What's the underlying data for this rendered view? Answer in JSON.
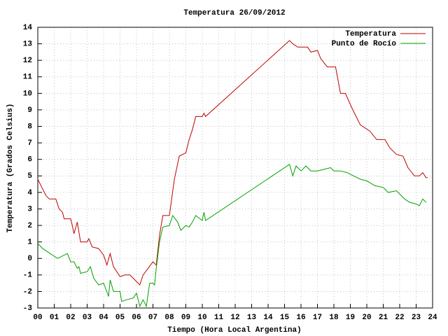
{
  "chart_data": {
    "type": "line",
    "title": "Temperatura 26/09/2012",
    "x_label": "Tiempo (Hora Local Argentina)",
    "y_label": "Temperatura (Grados Celsius)",
    "xlim": [
      0,
      24
    ],
    "ylim": [
      -3,
      14
    ],
    "xticks": [
      {
        "value": 0,
        "label": "00"
      },
      {
        "value": 1,
        "label": "01"
      },
      {
        "value": 2,
        "label": "02"
      },
      {
        "value": 3,
        "label": "03"
      },
      {
        "value": 4,
        "label": "04"
      },
      {
        "value": 5,
        "label": "05"
      },
      {
        "value": 6,
        "label": "06"
      },
      {
        "value": 7,
        "label": "07"
      },
      {
        "value": 8,
        "label": "08"
      },
      {
        "value": 9,
        "label": "09"
      },
      10,
      11,
      12,
      13,
      14,
      15,
      16,
      17,
      18,
      19,
      20,
      21,
      22,
      23,
      24
    ],
    "yticks": [
      -3,
      -2,
      -1,
      0,
      1,
      2,
      3,
      4,
      5,
      6,
      7,
      8,
      9,
      10,
      11,
      12,
      13,
      14
    ],
    "grid": true,
    "legend": "top-right",
    "series": [
      {
        "name": "Temperatura",
        "color": "#c00000",
        "x": [
          0,
          0.3,
          0.5,
          0.7,
          1.1,
          1.3,
          1.5,
          1.6,
          2.0,
          2.1,
          2.2,
          2.4,
          2.6,
          3.0,
          3.1,
          3.3,
          3.7,
          4.0,
          4.2,
          4.4,
          4.6,
          5.0,
          5.3,
          5.6,
          5.9,
          6.2,
          6.4,
          6.7,
          7.0,
          7.2,
          7.4,
          7.6,
          8.0,
          8.3,
          8.6,
          9.0,
          9.2,
          9.4,
          9.6,
          10.0,
          10.1,
          10.2,
          15.3,
          15.5,
          15.8,
          16.4,
          16.6,
          17.0,
          17.2,
          17.6,
          18.1,
          18.4,
          18.7,
          19.1,
          19.6,
          20.2,
          20.6,
          21.1,
          21.4,
          21.8,
          22.2,
          22.5,
          22.9,
          23.2,
          23.4,
          23.6,
          23.7
        ],
        "values": [
          4.8,
          4.2,
          3.8,
          3.6,
          3.6,
          3.0,
          2.8,
          2.4,
          2.4,
          2.0,
          1.5,
          2.2,
          1.0,
          1.0,
          1.2,
          0.7,
          0.6,
          0.2,
          -0.4,
          0.3,
          -0.5,
          -1.1,
          -1.0,
          -1.0,
          -1.3,
          -1.6,
          -1.0,
          -0.6,
          -0.2,
          -0.4,
          1.4,
          2.6,
          2.6,
          4.8,
          6.2,
          6.4,
          7.2,
          7.8,
          8.6,
          8.6,
          8.8,
          8.6,
          13.2,
          13.0,
          12.8,
          12.8,
          12.5,
          12.6,
          12.1,
          11.6,
          11.6,
          10.0,
          10.0,
          9.1,
          8.1,
          7.7,
          7.2,
          7.2,
          6.7,
          6.3,
          6.2,
          5.5,
          5.0,
          5.0,
          5.2,
          4.9,
          4.9
        ]
      },
      {
        "name": "Punto de Rocío",
        "color": "#00a000",
        "x": [
          0,
          0.3,
          0.6,
          0.9,
          1.2,
          1.8,
          2.0,
          2.2,
          2.4,
          2.5,
          2.6,
          3.0,
          3.2,
          3.4,
          3.7,
          4.0,
          4.3,
          4.4,
          4.6,
          5.0,
          5.1,
          5.4,
          5.8,
          6.0,
          6.2,
          6.4,
          6.6,
          6.8,
          7.0,
          7.1,
          7.2,
          7.4,
          7.6,
          8.0,
          8.2,
          8.5,
          8.7,
          9.0,
          9.2,
          9.4,
          9.6,
          10.0,
          10.1,
          10.2,
          15.3,
          15.5,
          15.7,
          16.0,
          16.3,
          16.6,
          17.0,
          17.4,
          17.8,
          18.0,
          18.4,
          18.8,
          19.2,
          19.6,
          20.0,
          20.5,
          21.0,
          21.3,
          21.8,
          22.3,
          22.6,
          23.0,
          23.2,
          23.4,
          23.6
        ],
        "values": [
          0.9,
          0.6,
          0.4,
          0.2,
          0.0,
          0.3,
          -0.2,
          -0.2,
          -0.6,
          -0.5,
          -0.9,
          -0.8,
          -0.5,
          -1.2,
          -1.6,
          -1.5,
          -2.3,
          -1.3,
          -2.0,
          -2.0,
          -2.6,
          -2.5,
          -2.4,
          -2.1,
          -2.9,
          -2.5,
          -2.9,
          -1.5,
          -1.5,
          -1.6,
          -0.6,
          1.0,
          1.9,
          2.0,
          2.6,
          2.2,
          1.7,
          2.0,
          1.9,
          2.2,
          2.6,
          2.3,
          2.8,
          2.3,
          5.7,
          5.0,
          5.6,
          5.3,
          5.6,
          5.3,
          5.3,
          5.4,
          5.5,
          5.3,
          5.3,
          5.2,
          5.0,
          4.8,
          4.7,
          4.4,
          4.3,
          4.0,
          4.1,
          3.6,
          3.4,
          3.3,
          3.2,
          3.6,
          3.4
        ]
      }
    ]
  }
}
